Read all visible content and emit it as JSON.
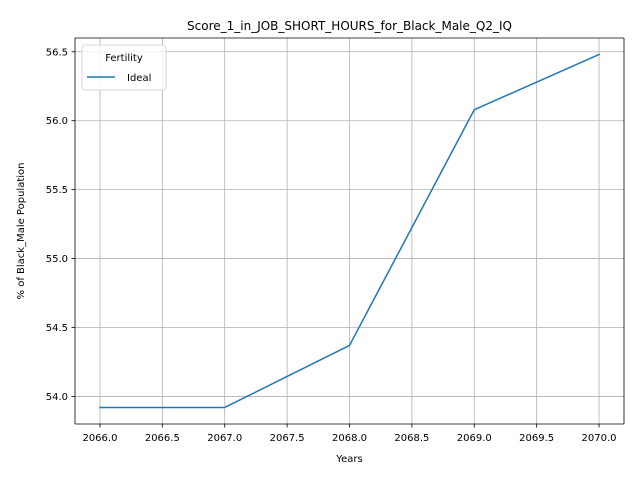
{
  "chart_data": {
    "type": "line",
    "title": "Score_1_in_JOB_SHORT_HOURS_for_Black_Male_Q2_IQ",
    "xlabel": "Years",
    "ylabel": "% of Black_Male Population",
    "x": [
      2066,
      2067,
      2068,
      2069,
      2070
    ],
    "series": [
      {
        "name": "Ideal",
        "color": "#1f77b4",
        "values": [
          53.92,
          53.92,
          54.37,
          56.08,
          56.48
        ]
      }
    ],
    "xlim": [
      2065.8,
      2070.2
    ],
    "ylim": [
      53.8,
      56.6
    ],
    "xticks": [
      2066.0,
      2066.5,
      2067.0,
      2067.5,
      2068.0,
      2068.5,
      2069.0,
      2069.5,
      2070.0
    ],
    "xtick_labels": [
      "2066.0",
      "2066.5",
      "2067.0",
      "2067.5",
      "2068.0",
      "2068.5",
      "2069.0",
      "2069.5",
      "2070.0"
    ],
    "yticks": [
      54.0,
      54.5,
      55.0,
      55.5,
      56.0,
      56.5
    ],
    "ytick_labels": [
      "54.0",
      "54.5",
      "55.0",
      "55.5",
      "56.0",
      "56.5"
    ],
    "grid": true,
    "legend": {
      "title": "Fertility",
      "placement": "upper-left"
    }
  }
}
